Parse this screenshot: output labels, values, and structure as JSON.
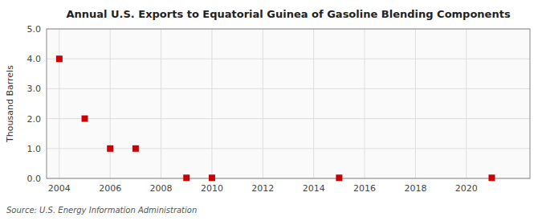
{
  "chart_data": {
    "type": "scatter",
    "title": "Annual U.S. Exports to Equatorial Guinea of Gasoline Blending Components",
    "y_label": "Thousand Barrels",
    "annotations": [
      "Source: U.S. Energy Information Administration"
    ],
    "x": [
      2004,
      2005,
      2006,
      2007,
      2009,
      2010,
      2015,
      2021
    ],
    "values": [
      4.0,
      2.0,
      1.0,
      1.0,
      0.02,
      0.02,
      0.02,
      0.02
    ],
    "color": "#cc0000",
    "marker": "square",
    "xlim": [
      2003.5,
      2022.5
    ],
    "ylim": [
      0.0,
      5.0
    ],
    "xticks": [
      2004,
      2006,
      2008,
      2010,
      2012,
      2014,
      2016,
      2018,
      2020
    ],
    "yticks": [
      {
        "value": 0.0,
        "label": "0.0"
      },
      {
        "value": 1.0,
        "label": "1.0"
      },
      {
        "value": 2.0,
        "label": "2.0"
      },
      {
        "value": 3.0,
        "label": "3.0"
      },
      {
        "value": 4.0,
        "label": "4.0"
      },
      {
        "value": 5.0,
        "label": "5.0"
      }
    ],
    "grid": true
  }
}
